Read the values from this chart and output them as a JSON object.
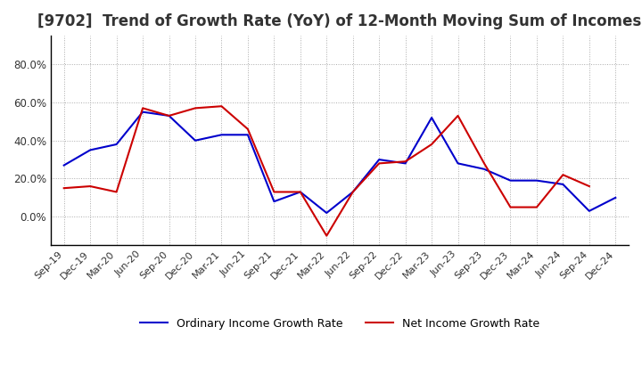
{
  "title": "[9702]  Trend of Growth Rate (YoY) of 12-Month Moving Sum of Incomes",
  "title_fontsize": 12,
  "ylim": [
    -15,
    95
  ],
  "yticks": [
    0,
    20,
    40,
    60,
    80
  ],
  "background_color": "#ffffff",
  "grid_color": "#aaaaaa",
  "ordinary_color": "#0000cc",
  "net_color": "#cc0000",
  "x_labels": [
    "Sep-19",
    "Dec-19",
    "Mar-20",
    "Jun-20",
    "Sep-20",
    "Dec-20",
    "Mar-21",
    "Jun-21",
    "Sep-21",
    "Dec-21",
    "Mar-22",
    "Jun-22",
    "Sep-22",
    "Dec-22",
    "Mar-23",
    "Jun-23",
    "Sep-23",
    "Dec-23",
    "Mar-24",
    "Jun-24",
    "Sep-24",
    "Dec-24"
  ],
  "ordinary_income": [
    27,
    35,
    38,
    55,
    53,
    40,
    43,
    43,
    8,
    13,
    2,
    13,
    30,
    28,
    52,
    28,
    25,
    19,
    19,
    17,
    3,
    10
  ],
  "net_income": [
    15,
    16,
    13,
    57,
    53,
    57,
    58,
    46,
    13,
    13,
    -10,
    13,
    28,
    29,
    38,
    53,
    28,
    5,
    5,
    22,
    16,
    null
  ],
  "legend_ordinary": "Ordinary Income Growth Rate",
  "legend_net": "Net Income Growth Rate"
}
